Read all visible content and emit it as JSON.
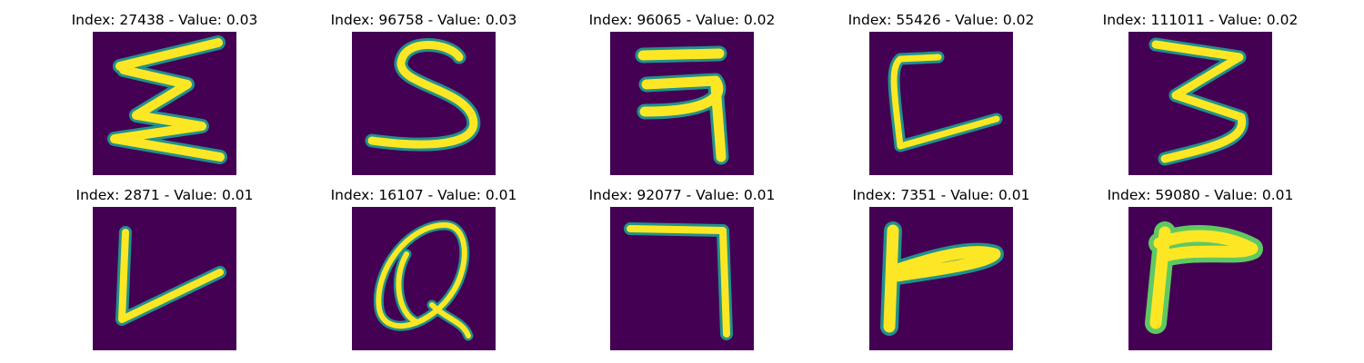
{
  "colors": {
    "background": "#440154",
    "edge": "#21918c",
    "mid": "#5ec962",
    "peak": "#fde725"
  },
  "colormap": "viridis",
  "grid": {
    "rows": 2,
    "cols": 5
  },
  "panels": [
    {
      "title": "Index: 27438 - Value: 0.03",
      "glyph": "sigma-like-E"
    },
    {
      "title": "Index: 96758 - Value: 0.03",
      "glyph": "S"
    },
    {
      "title": "Index: 96065 - Value: 0.02",
      "glyph": "devanagari-ra"
    },
    {
      "title": "Index: 55426 - Value: 0.02",
      "glyph": "L-curved"
    },
    {
      "title": "Index: 111011 - Value: 0.02",
      "glyph": "3"
    },
    {
      "title": "Index: 2871 - Value: 0.01",
      "glyph": "V-like-L"
    },
    {
      "title": "Index: 16107 - Value: 0.01",
      "glyph": "Q-looped"
    },
    {
      "title": "Index: 92077 - Value: 0.01",
      "glyph": "7"
    },
    {
      "title": "Index: 7351 - Value: 0.01",
      "glyph": "r"
    },
    {
      "title": "Index: 59080 - Value: 0.01",
      "glyph": "r-wide"
    }
  ]
}
